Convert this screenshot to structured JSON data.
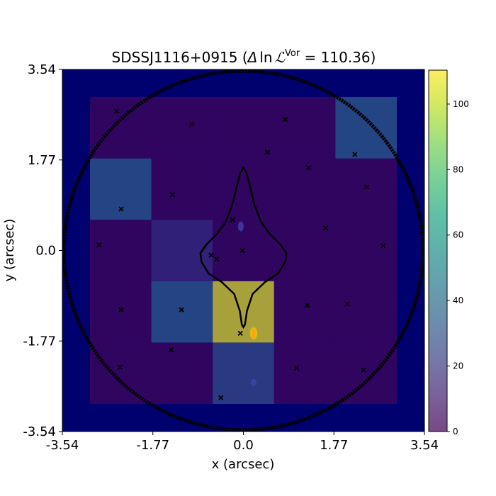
{
  "chart_data": {
    "type": "heatmap",
    "title": {
      "prefix": "SDSSJ1116+0915 (",
      "delta": "Δ",
      "ln": "ln",
      "L": "ℒ",
      "sup": "Vor",
      "suffix": " =  110.36)"
    },
    "xlabel": "x (arcsec)",
    "ylabel": "y (arcsec)",
    "xlim": [
      -3.54,
      3.54
    ],
    "ylim": [
      -3.54,
      3.54
    ],
    "xticks": [
      {
        "value": -3.54,
        "label": "-3.54"
      },
      {
        "value": -1.77,
        "label": "-1.77"
      },
      {
        "value": 0.0,
        "label": "0.0"
      },
      {
        "value": 1.77,
        "label": "1.77"
      },
      {
        "value": 3.54,
        "label": "3.54"
      }
    ],
    "yticks": [
      {
        "value": -3.54,
        "label": "-3.54"
      },
      {
        "value": -1.77,
        "label": "-1.77"
      },
      {
        "value": 0.0,
        "label": "0.0"
      },
      {
        "value": 1.77,
        "label": "1.77"
      },
      {
        "value": 3.54,
        "label": "3.54"
      }
    ],
    "colorbar": {
      "range": [
        0,
        110.36
      ],
      "ticks": [
        {
          "value": 0,
          "label": "0"
        },
        {
          "value": 20,
          "label": "20"
        },
        {
          "value": 40,
          "label": "40"
        },
        {
          "value": 60,
          "label": "60"
        },
        {
          "value": 80,
          "label": "80"
        },
        {
          "value": 100,
          "label": "100"
        }
      ],
      "colormap": "viridis",
      "alpha": 0.7
    },
    "grid": {
      "x_edges": [
        -3.0,
        -1.8,
        -0.6,
        0.6,
        1.8,
        3.0
      ],
      "y_edges": [
        -3.0,
        -1.8,
        -0.6,
        0.6,
        1.8,
        3.0
      ],
      "cells": [
        {
          "col": 0,
          "row": 0,
          "value": 2
        },
        {
          "col": 1,
          "row": 0,
          "value": 2
        },
        {
          "col": 2,
          "row": 0,
          "value": 28
        },
        {
          "col": 3,
          "row": 0,
          "value": 2
        },
        {
          "col": 4,
          "row": 0,
          "value": 2
        },
        {
          "col": 0,
          "row": 1,
          "value": 2
        },
        {
          "col": 1,
          "row": 1,
          "value": 34
        },
        {
          "col": 2,
          "row": 1,
          "value": 108
        },
        {
          "col": 3,
          "row": 1,
          "value": 2
        },
        {
          "col": 4,
          "row": 1,
          "value": 2
        },
        {
          "col": 0,
          "row": 2,
          "value": 2
        },
        {
          "col": 1,
          "row": 2,
          "value": 14
        },
        {
          "col": 2,
          "row": 2,
          "value": 2
        },
        {
          "col": 3,
          "row": 2,
          "value": 2
        },
        {
          "col": 4,
          "row": 2,
          "value": 2
        },
        {
          "col": 0,
          "row": 3,
          "value": 34
        },
        {
          "col": 1,
          "row": 3,
          "value": 2
        },
        {
          "col": 2,
          "row": 3,
          "value": 2
        },
        {
          "col": 3,
          "row": 3,
          "value": 2
        },
        {
          "col": 4,
          "row": 3,
          "value": 2
        },
        {
          "col": 0,
          "row": 4,
          "value": 2
        },
        {
          "col": 1,
          "row": 4,
          "value": 2
        },
        {
          "col": 2,
          "row": 4,
          "value": 2
        },
        {
          "col": 3,
          "row": 4,
          "value": 2
        },
        {
          "col": 4,
          "row": 4,
          "value": 35
        }
      ]
    },
    "markers": [
      {
        "x": -2.48,
        "y": 2.73
      },
      {
        "x": -1.01,
        "y": 2.47
      },
      {
        "x": 0.82,
        "y": 2.56
      },
      {
        "x": 0.47,
        "y": 1.92
      },
      {
        "x": 2.18,
        "y": 1.88
      },
      {
        "x": 1.27,
        "y": 1.62
      },
      {
        "x": 2.41,
        "y": 1.24
      },
      {
        "x": -1.39,
        "y": 1.09
      },
      {
        "x": -2.39,
        "y": 0.81
      },
      {
        "x": -0.21,
        "y": 0.6
      },
      {
        "x": 1.61,
        "y": 0.44
      },
      {
        "x": -2.82,
        "y": 0.11
      },
      {
        "x": 2.73,
        "y": 0.09
      },
      {
        "x": -0.63,
        "y": -0.09
      },
      {
        "x": -0.52,
        "y": -0.17
      },
      {
        "x": -0.02,
        "y": 0.0
      },
      {
        "x": -2.39,
        "y": -1.16
      },
      {
        "x": -1.21,
        "y": -1.16
      },
      {
        "x": 1.25,
        "y": -1.07
      },
      {
        "x": 2.03,
        "y": -1.05
      },
      {
        "x": -0.06,
        "y": -1.62
      },
      {
        "x": -1.41,
        "y": -1.94
      },
      {
        "x": -2.41,
        "y": -2.28
      },
      {
        "x": 1.04,
        "y": -2.3
      },
      {
        "x": 2.35,
        "y": -2.34
      },
      {
        "x": -0.44,
        "y": -2.88
      }
    ],
    "circle": {
      "center": [
        0,
        0
      ],
      "radius": 3.51
    },
    "caustic": {
      "x": [
        0.0,
        0.06,
        0.13,
        0.22,
        0.35,
        0.52,
        0.72,
        0.84,
        0.82,
        0.68,
        0.42,
        0.18,
        0.07,
        0.03,
        0.0,
        -0.03,
        -0.07,
        -0.18,
        -0.42,
        -0.68,
        -0.82,
        -0.84,
        -0.72,
        -0.52,
        -0.35,
        -0.22,
        -0.13,
        -0.06,
        0.0
      ],
      "y": [
        1.62,
        1.52,
        1.25,
        0.88,
        0.55,
        0.32,
        0.12,
        -0.05,
        -0.22,
        -0.45,
        -0.62,
        -0.85,
        -1.18,
        -1.45,
        -1.5,
        -1.45,
        -1.18,
        -0.85,
        -0.62,
        -0.45,
        -0.22,
        -0.05,
        0.12,
        0.32,
        0.55,
        0.88,
        1.25,
        1.52,
        1.62
      ]
    },
    "colors": {
      "background": "#00006e",
      "circle": "#000000",
      "markers": "#000000",
      "lens_blob": "#ffe200"
    }
  }
}
